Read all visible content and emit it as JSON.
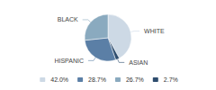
{
  "chart_data": {
    "type": "pie",
    "categories": [
      "WHITE",
      "ASIAN",
      "HISPANIC",
      "BLACK"
    ],
    "values": [
      42.0,
      2.7,
      28.7,
      26.7
    ],
    "value_labels": [
      "42.0%",
      "2.7%",
      "28.7%",
      "26.7%"
    ],
    "colors": [
      "#cdd9e5",
      "#2e4d6e",
      "#5b7fa6",
      "#8aaabf"
    ],
    "legend_labels": [
      "42.0%",
      "28.7%",
      "26.7%",
      "2.7%"
    ],
    "legend": "bottom"
  }
}
